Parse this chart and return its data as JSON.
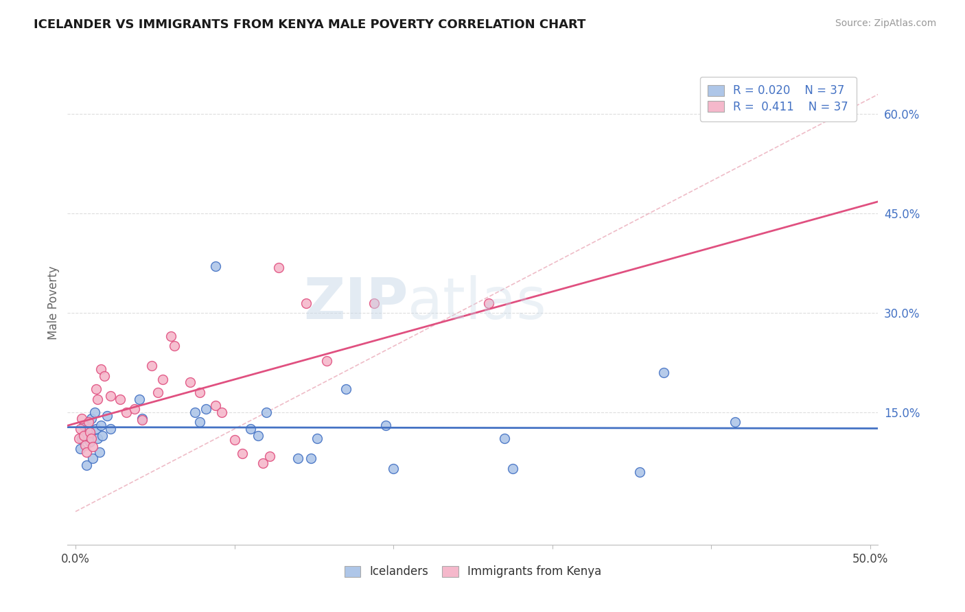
{
  "title": "ICELANDER VS IMMIGRANTS FROM KENYA MALE POVERTY CORRELATION CHART",
  "source": "Source: ZipAtlas.com",
  "ylabel": "Male Poverty",
  "xlim": [
    -0.005,
    0.505
  ],
  "ylim": [
    -0.05,
    0.68
  ],
  "ytick_labels_right": [
    "15.0%",
    "30.0%",
    "45.0%",
    "60.0%"
  ],
  "ytick_values_right": [
    0.15,
    0.3,
    0.45,
    0.6
  ],
  "r_icelander": 0.02,
  "r_kenya": 0.411,
  "n_icelander": 37,
  "n_kenya": 37,
  "color_icelander": "#aec6e8",
  "color_kenya": "#f5b8cb",
  "line_color_icelander": "#4472c4",
  "line_color_kenya": "#e05080",
  "dash_color": "#e8a0b0",
  "watermark_zip": "ZIP",
  "watermark_atlas": "atlas",
  "icelander_x": [
    0.003,
    0.004,
    0.005,
    0.006,
    0.007,
    0.008,
    0.009,
    0.01,
    0.011,
    0.012,
    0.013,
    0.014,
    0.015,
    0.016,
    0.017,
    0.02,
    0.022,
    0.04,
    0.042,
    0.075,
    0.078,
    0.082,
    0.088,
    0.11,
    0.115,
    0.12,
    0.14,
    0.148,
    0.152,
    0.17,
    0.195,
    0.2,
    0.27,
    0.275,
    0.355,
    0.37,
    0.415
  ],
  "icelander_y": [
    0.095,
    0.11,
    0.13,
    0.115,
    0.07,
    0.125,
    0.105,
    0.14,
    0.08,
    0.15,
    0.125,
    0.11,
    0.09,
    0.13,
    0.115,
    0.145,
    0.125,
    0.17,
    0.14,
    0.15,
    0.135,
    0.155,
    0.37,
    0.125,
    0.115,
    0.15,
    0.08,
    0.08,
    0.11,
    0.185,
    0.13,
    0.065,
    0.11,
    0.065,
    0.06,
    0.21,
    0.135
  ],
  "kenya_x": [
    0.002,
    0.003,
    0.004,
    0.005,
    0.006,
    0.007,
    0.008,
    0.009,
    0.01,
    0.011,
    0.013,
    0.014,
    0.016,
    0.018,
    0.022,
    0.028,
    0.032,
    0.037,
    0.042,
    0.048,
    0.052,
    0.055,
    0.06,
    0.062,
    0.072,
    0.078,
    0.088,
    0.092,
    0.1,
    0.105,
    0.118,
    0.122,
    0.128,
    0.145,
    0.158,
    0.188,
    0.26
  ],
  "kenya_y": [
    0.11,
    0.125,
    0.14,
    0.115,
    0.1,
    0.09,
    0.135,
    0.12,
    0.11,
    0.098,
    0.185,
    0.17,
    0.215,
    0.205,
    0.175,
    0.17,
    0.15,
    0.155,
    0.138,
    0.22,
    0.18,
    0.2,
    0.265,
    0.25,
    0.195,
    0.18,
    0.16,
    0.15,
    0.108,
    0.088,
    0.073,
    0.083,
    0.368,
    0.315,
    0.228,
    0.315,
    0.315
  ]
}
